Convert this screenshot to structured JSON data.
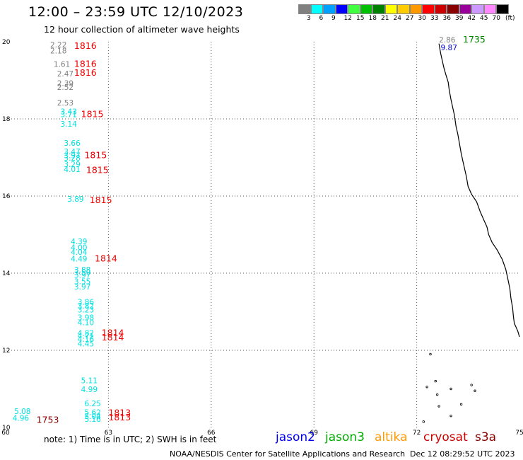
{
  "title": "12:00 – 23:59 UTC 12/10/2023",
  "subtitle": "12 hour collection of altimeter wave heights",
  "color_scale": {
    "colors": [
      "#808080",
      "#00ffff",
      "#00a0ff",
      "#0000ff",
      "#40ff40",
      "#00c000",
      "#008000",
      "#ffff00",
      "#ffcc00",
      "#ff9900",
      "#ff0000",
      "#cc0000",
      "#880000",
      "#990099",
      "#cc99ff",
      "#ff88ff",
      "#000000"
    ],
    "labels": [
      "3",
      "6",
      "9",
      "12",
      "15",
      "18",
      "21",
      "24",
      "27",
      "30",
      "33",
      "36",
      "39",
      "42",
      "45",
      "70",
      "(ft)"
    ]
  },
  "axes": {
    "x_ticks": [
      "60",
      "63",
      "66",
      "69",
      "72",
      "75"
    ],
    "y_ticks": [
      "10",
      "12",
      "14",
      "16",
      "18",
      "20"
    ],
    "x_range": [
      60,
      75
    ],
    "y_range": [
      10,
      20
    ]
  },
  "observations": [
    {
      "lon": 61.3,
      "lat": 19.85,
      "text": "2.22",
      "color": "#808080"
    },
    {
      "lon": 61.3,
      "lat": 19.7,
      "text": "2.18",
      "color": "#808080"
    },
    {
      "lon": 61.4,
      "lat": 19.35,
      "text": "1.61",
      "color": "#808080"
    },
    {
      "lon": 61.5,
      "lat": 19.1,
      "text": "2.47",
      "color": "#808080"
    },
    {
      "lon": 61.5,
      "lat": 18.85,
      "text": "2.39",
      "color": "#808080"
    },
    {
      "lon": 61.5,
      "lat": 18.75,
      "text": "2.52",
      "color": "#808080"
    },
    {
      "lon": 61.5,
      "lat": 18.35,
      "text": "2.53",
      "color": "#808080"
    },
    {
      "lon": 61.6,
      "lat": 18.12,
      "text": "3.43",
      "color": "#00e0e0"
    },
    {
      "lon": 61.6,
      "lat": 18.05,
      "text": "3.71",
      "color": "#00e0e0"
    },
    {
      "lon": 61.6,
      "lat": 17.8,
      "text": "3.14",
      "color": "#00e0e0"
    },
    {
      "lon": 61.7,
      "lat": 17.3,
      "text": "3.66",
      "color": "#00e0e0"
    },
    {
      "lon": 61.7,
      "lat": 17.08,
      "text": "3.47",
      "color": "#00e0e0"
    },
    {
      "lon": 61.7,
      "lat": 16.98,
      "text": "3.97",
      "color": "#00e0e0"
    },
    {
      "lon": 61.7,
      "lat": 16.92,
      "text": "3.28",
      "color": "#00e0e0"
    },
    {
      "lon": 61.7,
      "lat": 16.75,
      "text": "3.29",
      "color": "#00e0e0"
    },
    {
      "lon": 61.7,
      "lat": 16.62,
      "text": "4.01",
      "color": "#00e0e0"
    },
    {
      "lon": 61.8,
      "lat": 15.85,
      "text": "3.89",
      "color": "#00e0e0"
    },
    {
      "lon": 61.9,
      "lat": 14.75,
      "text": "4.39",
      "color": "#00e0e0"
    },
    {
      "lon": 61.9,
      "lat": 14.6,
      "text": "4.00",
      "color": "#00e0e0"
    },
    {
      "lon": 61.9,
      "lat": 14.48,
      "text": "4.04",
      "color": "#00e0e0"
    },
    {
      "lon": 61.9,
      "lat": 14.3,
      "text": "4.49",
      "color": "#00e0e0"
    },
    {
      "lon": 62.0,
      "lat": 14.02,
      "text": "3.88",
      "color": "#00e0e0"
    },
    {
      "lon": 62.0,
      "lat": 13.95,
      "text": "3.50",
      "color": "#00e0e0"
    },
    {
      "lon": 62.0,
      "lat": 13.88,
      "text": "3.97",
      "color": "#00e0e0"
    },
    {
      "lon": 62.0,
      "lat": 13.72,
      "text": "3.55",
      "color": "#00e0e0"
    },
    {
      "lon": 62.0,
      "lat": 13.58,
      "text": "3.97",
      "color": "#00e0e0"
    },
    {
      "lon": 62.1,
      "lat": 13.18,
      "text": "3.86",
      "color": "#00e0e0"
    },
    {
      "lon": 62.1,
      "lat": 13.08,
      "text": "3.82",
      "color": "#00e0e0"
    },
    {
      "lon": 62.1,
      "lat": 12.98,
      "text": "3.23",
      "color": "#00e0e0"
    },
    {
      "lon": 62.1,
      "lat": 12.78,
      "text": "3.98",
      "color": "#00e0e0"
    },
    {
      "lon": 62.1,
      "lat": 12.65,
      "text": "4.10",
      "color": "#00e0e0"
    },
    {
      "lon": 62.1,
      "lat": 12.38,
      "text": "4.82",
      "color": "#00e0e0"
    },
    {
      "lon": 62.1,
      "lat": 12.3,
      "text": "4.71",
      "color": "#00e0e0"
    },
    {
      "lon": 62.1,
      "lat": 12.22,
      "text": "4.16",
      "color": "#00e0e0"
    },
    {
      "lon": 62.1,
      "lat": 12.1,
      "text": "4.45",
      "color": "#00e0e0"
    },
    {
      "lon": 62.2,
      "lat": 11.15,
      "text": "5.11",
      "color": "#00e0e0"
    },
    {
      "lon": 62.2,
      "lat": 10.92,
      "text": "4.99",
      "color": "#00e0e0"
    },
    {
      "lon": 62.3,
      "lat": 10.55,
      "text": "6.25",
      "color": "#00e0e0"
    },
    {
      "lon": 60.25,
      "lat": 10.35,
      "text": "5.08",
      "color": "#00e0e0"
    },
    {
      "lon": 60.2,
      "lat": 10.17,
      "text": "4.96",
      "color": "#00e0e0"
    },
    {
      "lon": 62.3,
      "lat": 10.32,
      "text": "5.62",
      "color": "#00e0e0"
    },
    {
      "lon": 62.3,
      "lat": 10.22,
      "text": "5.04",
      "color": "#00e0e0"
    },
    {
      "lon": 62.3,
      "lat": 10.15,
      "text": "5.16",
      "color": "#00e0e0"
    },
    {
      "lon": 72.65,
      "lat": 19.98,
      "text": "2.86",
      "color": "#808080"
    },
    {
      "lon": 72.7,
      "lat": 19.78,
      "text": "9.87",
      "color": "#0000cc"
    }
  ],
  "pass_times": [
    {
      "lon": 62.0,
      "lat": 19.82,
      "text": "1816",
      "color": "#ee0000"
    },
    {
      "lon": 62.0,
      "lat": 19.35,
      "text": "1816",
      "color": "#ee0000"
    },
    {
      "lon": 62.0,
      "lat": 19.12,
      "text": "1816",
      "color": "#ee0000"
    },
    {
      "lon": 62.2,
      "lat": 18.05,
      "text": "1815",
      "color": "#ee0000"
    },
    {
      "lon": 62.3,
      "lat": 16.98,
      "text": "1815",
      "color": "#ee0000"
    },
    {
      "lon": 62.35,
      "lat": 16.6,
      "text": "1815",
      "color": "#ee0000"
    },
    {
      "lon": 62.45,
      "lat": 15.82,
      "text": "1815",
      "color": "#ee0000"
    },
    {
      "lon": 62.6,
      "lat": 14.3,
      "text": "1814",
      "color": "#ee0000"
    },
    {
      "lon": 62.8,
      "lat": 12.38,
      "text": "1814",
      "color": "#ee0000"
    },
    {
      "lon": 62.8,
      "lat": 12.26,
      "text": "1814",
      "color": "#ee0000"
    },
    {
      "lon": 63.0,
      "lat": 10.3,
      "text": "1813",
      "color": "#ee0000"
    },
    {
      "lon": 63.0,
      "lat": 10.18,
      "text": "1813",
      "color": "#ee0000"
    },
    {
      "lon": 60.9,
      "lat": 10.12,
      "text": "1753",
      "color": "#880000"
    },
    {
      "lon": 73.35,
      "lat": 19.98,
      "text": "1735",
      "color": "#008000"
    }
  ],
  "footer": {
    "note": "note:  1) Time is in UTC;  2) SWH is in feet",
    "credit": "NOAA/NESDIS Center for Satellite Applications and Research",
    "timestamp": "Dec 12 08:29:52 UTC 2023"
  },
  "legend": {
    "jason2": {
      "label": "jason2",
      "color": "#0000ee"
    },
    "jason3": {
      "label": "jason3",
      "color": "#00aa00"
    },
    "altika": {
      "label": "altika",
      "color": "#ff9900"
    },
    "cryosat": {
      "label": "cryosat",
      "color": "#cc0000"
    },
    "s3a": {
      "label": "s3a",
      "color": "#880000"
    }
  }
}
